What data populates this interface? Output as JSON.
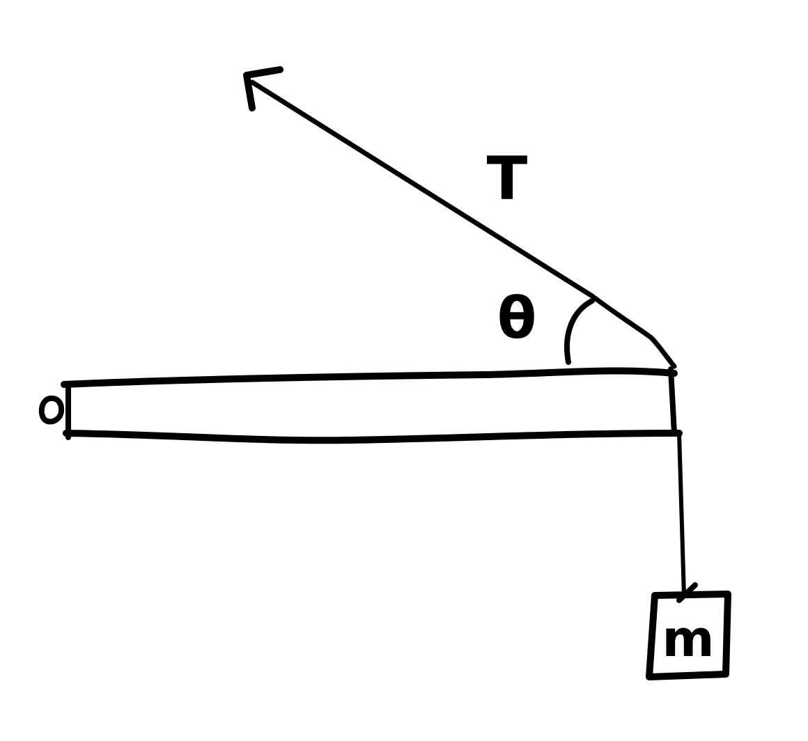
{
  "figure": {
    "type": "statics-free-body-diagram",
    "tension_label": "T",
    "angle_label": "θ",
    "mass_label": "m",
    "colors": {
      "ink": "#000000",
      "background": "#ffffff"
    }
  }
}
